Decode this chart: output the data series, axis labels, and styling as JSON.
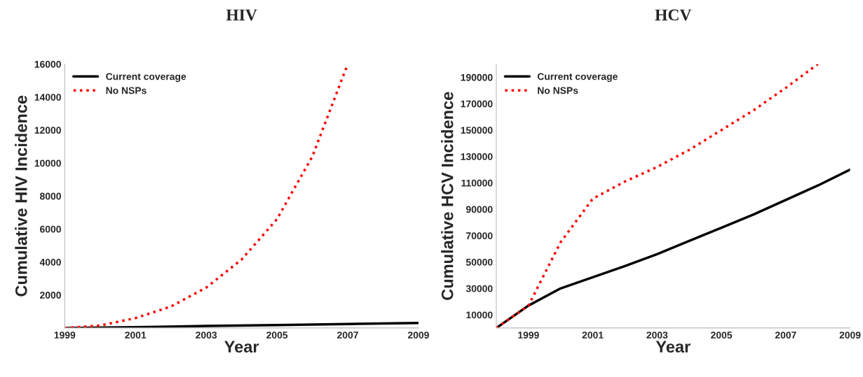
{
  "chart_data": [
    {
      "type": "line",
      "title": "HIV",
      "xlabel": "Year",
      "ylabel": "Cumulative HIV Incidence",
      "xlim": [
        1999,
        2009
      ],
      "xticks": [
        1999,
        2001,
        2003,
        2005,
        2007,
        2009
      ],
      "ylim": [
        0,
        16000
      ],
      "yticks": [
        2000,
        4000,
        6000,
        8000,
        10000,
        12000,
        14000,
        16000
      ],
      "grid": false,
      "legend": "top left",
      "series": [
        {
          "name": "Current coverage",
          "color": "#000000",
          "line_style": "solid",
          "x": [
            1999,
            2001,
            2003,
            2005,
            2007,
            2009
          ],
          "values": [
            0,
            50,
            120,
            180,
            240,
            300
          ]
        },
        {
          "name": "No NSPs",
          "color": "#ff0000",
          "line_style": "dotted",
          "x": [
            1999,
            2000,
            2001,
            2002,
            2003,
            2004,
            2005,
            2006,
            2007
          ],
          "values": [
            0,
            150,
            600,
            1300,
            2450,
            4150,
            6600,
            10400,
            16000
          ]
        }
      ]
    },
    {
      "type": "line",
      "title": "HCV",
      "xlabel": "Year",
      "ylabel": "Cumulative HCV Incidence",
      "xlim": [
        1998,
        2009
      ],
      "xticks": [
        1999,
        2001,
        2003,
        2005,
        2007,
        2009
      ],
      "ylim": [
        0,
        200000
      ],
      "yticks": [
        10000,
        30000,
        50000,
        70000,
        90000,
        110000,
        130000,
        150000,
        170000,
        190000
      ],
      "grid": false,
      "legend": "top left",
      "series": [
        {
          "name": "Current coverage",
          "color": "#000000",
          "line_style": "solid",
          "x": [
            1998,
            1999,
            2000,
            2001,
            2002,
            2003,
            2004,
            2005,
            2006,
            2007,
            2008,
            2009
          ],
          "values": [
            0,
            17000,
            30000,
            38500,
            47000,
            56000,
            66000,
            76000,
            86000,
            97000,
            108000,
            120000
          ]
        },
        {
          "name": "No NSPs",
          "color": "#ff0000",
          "line_style": "dotted",
          "x": [
            1998,
            1999,
            2000,
            2001,
            2002,
            2003,
            2004,
            2005,
            2006,
            2007,
            2008
          ],
          "values": [
            0,
            17000,
            65000,
            98000,
            111000,
            122000,
            135000,
            150000,
            165000,
            182000,
            200000
          ]
        }
      ]
    }
  ]
}
